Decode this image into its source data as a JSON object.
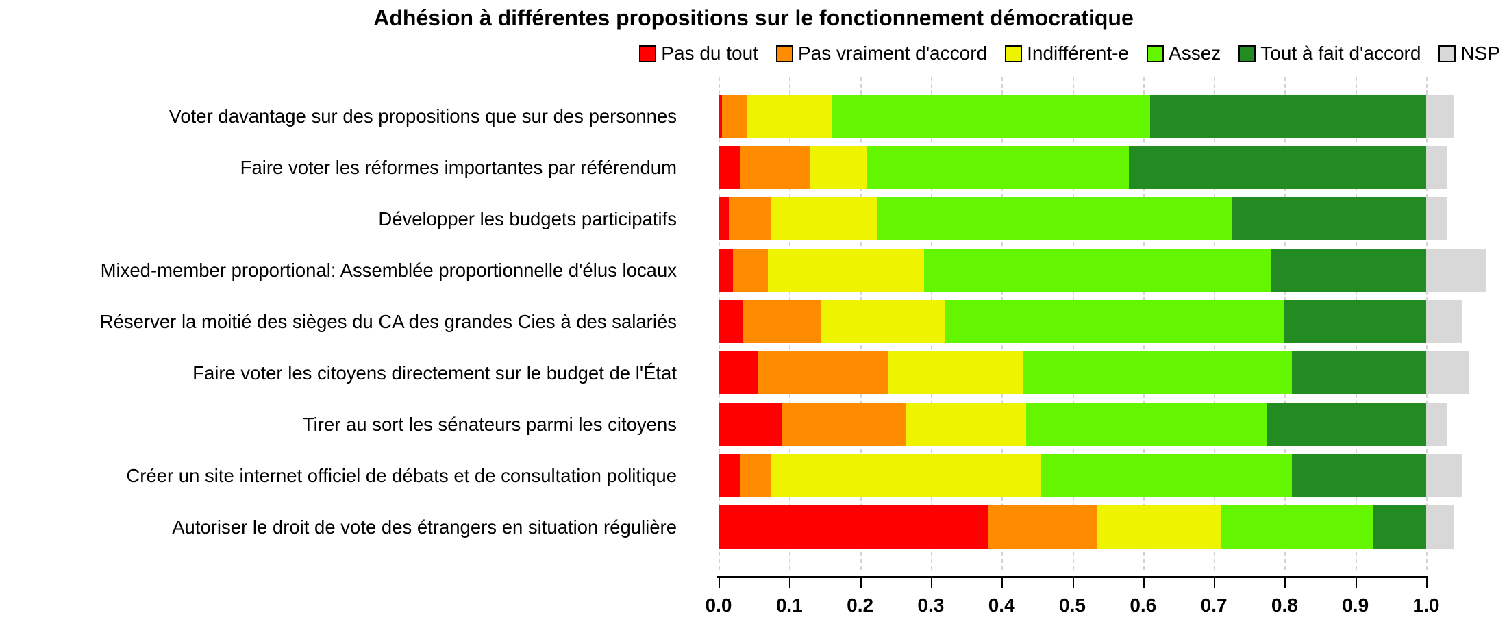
{
  "title": "Adhésion à différentes propositions sur le fonctionnement démocratique",
  "legend": {
    "position": "top-right",
    "items": [
      {
        "key": "pas-du-tout",
        "label": "Pas du tout",
        "color": "#FF0000"
      },
      {
        "key": "pas-vraiment-daccord",
        "label": "Pas vraiment d'accord",
        "color": "#FF8C00"
      },
      {
        "key": "indifferent-e",
        "label": "Indifférent-e",
        "color": "#EEF400"
      },
      {
        "key": "assez",
        "label": "Assez",
        "color": "#63F600"
      },
      {
        "key": "tout-a-fait-daccord",
        "label": "Tout à fait d'accord",
        "color": "#228B22"
      },
      {
        "key": "nsp",
        "label": "NSP",
        "color": "#D8D8D8"
      }
    ]
  },
  "chart_data": {
    "type": "bar",
    "orientation": "horizontal",
    "stacked": true,
    "title": "Adhésion à différentes propositions sur le fonctionnement démocratique",
    "xlabel": "",
    "ylabel": "",
    "xlim": [
      0.0,
      1.0
    ],
    "x_ticks": [
      "0.0",
      "0.1",
      "0.2",
      "0.3",
      "0.4",
      "0.5",
      "0.6",
      "0.7",
      "0.8",
      "0.9",
      "1.0"
    ],
    "grid": "vertical-dashed",
    "legend_position": "top",
    "series_names": [
      "Pas du tout",
      "Pas vraiment d'accord",
      "Indifférent-e",
      "Assez",
      "Tout à fait d'accord",
      "NSP"
    ],
    "series_colors": [
      "#FF0000",
      "#FF8C00",
      "#EEF400",
      "#63F600",
      "#228B22",
      "#D8D8D8"
    ],
    "note": "Colored segments (opinions) sum to 1.0 per row; NSP is stacked beyond 1.0",
    "rows": [
      {
        "label": "Voter davantage sur des propositions que sur des personnes",
        "values": [
          0.005,
          0.035,
          0.12,
          0.45,
          0.39,
          0.04
        ]
      },
      {
        "label": "Faire voter les réformes importantes par référendum",
        "values": [
          0.03,
          0.1,
          0.08,
          0.37,
          0.42,
          0.03
        ]
      },
      {
        "label": "Développer les budgets participatifs",
        "values": [
          0.015,
          0.06,
          0.15,
          0.5,
          0.275,
          0.03
        ]
      },
      {
        "label": "Mixed-member proportional: Assemblée proportionnelle d'élus locaux",
        "values": [
          0.02,
          0.05,
          0.22,
          0.49,
          0.22,
          0.085
        ]
      },
      {
        "label": "Réserver la moitié des sièges du CA des grandes Cies à des salariés",
        "values": [
          0.035,
          0.11,
          0.175,
          0.48,
          0.2,
          0.05
        ]
      },
      {
        "label": "Faire voter les citoyens directement sur le budget de l'État",
        "values": [
          0.055,
          0.185,
          0.19,
          0.38,
          0.19,
          0.06
        ]
      },
      {
        "label": "Tirer au sort les sénateurs parmi les citoyens",
        "values": [
          0.09,
          0.175,
          0.17,
          0.34,
          0.225,
          0.03
        ]
      },
      {
        "label": "Créer un site internet officiel de débats et de consultation politique",
        "values": [
          0.03,
          0.045,
          0.38,
          0.355,
          0.19,
          0.05
        ]
      },
      {
        "label": "Autoriser le droit de vote des étrangers en situation régulière",
        "values": [
          0.38,
          0.155,
          0.175,
          0.215,
          0.075,
          0.04
        ]
      }
    ]
  }
}
